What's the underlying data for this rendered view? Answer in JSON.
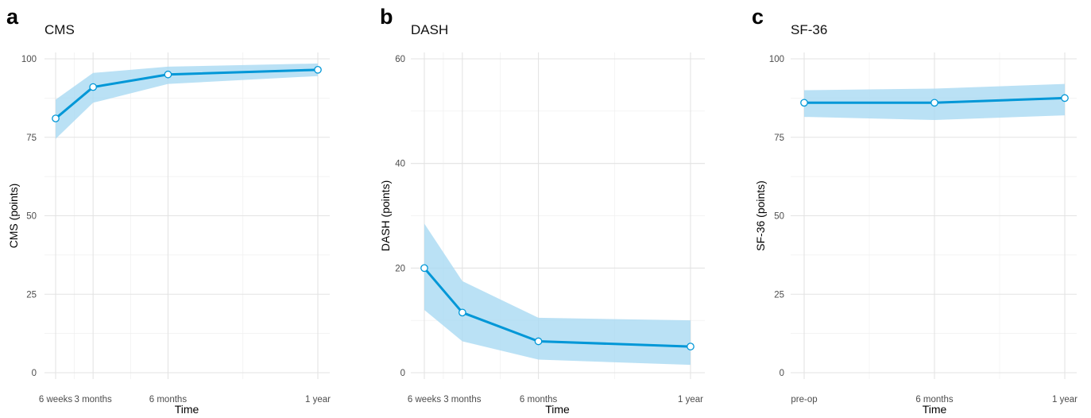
{
  "colors": {
    "line": "#0097d7",
    "band": "#a9daf2",
    "marker_fill": "#ffffff",
    "grid": "#e3e3e3"
  },
  "chart_data": [
    {
      "panel": "a",
      "type": "line",
      "title": "CMS",
      "xlabel": "Time",
      "ylabel": "CMS (points)",
      "x_months": [
        1.5,
        3,
        6,
        12
      ],
      "categories": [
        "6 weeks",
        "3 months",
        "6 months",
        "1 year"
      ],
      "values": [
        81,
        91,
        95,
        96.5
      ],
      "ci_lower": [
        74.5,
        86,
        92,
        94.5
      ],
      "ci_upper": [
        87,
        95.5,
        97.5,
        98.5
      ],
      "ylim": [
        0,
        100
      ],
      "yticks": [
        0,
        25,
        50,
        75,
        100
      ],
      "grid": true
    },
    {
      "panel": "b",
      "type": "line",
      "title": "DASH",
      "xlabel": "Time",
      "ylabel": "DASH (points)",
      "x_months": [
        1.5,
        3,
        6,
        12
      ],
      "categories": [
        "6 weeks",
        "3 months",
        "6 months",
        "1 year"
      ],
      "values": [
        20,
        11.5,
        6,
        5
      ],
      "ci_lower": [
        12,
        6,
        2.5,
        1.5
      ],
      "ci_upper": [
        28.5,
        17.5,
        10.5,
        10
      ],
      "ylim": [
        0,
        60
      ],
      "yticks": [
        0,
        20,
        40,
        60
      ],
      "grid": true
    },
    {
      "panel": "c",
      "type": "line",
      "title": "SF-36",
      "xlabel": "Time",
      "ylabel": "SF-36 (points)",
      "x_months": [
        0,
        6,
        12
      ],
      "categories": [
        "pre-op",
        "6 months",
        "1 year"
      ],
      "values": [
        86,
        86,
        87.5
      ],
      "ci_lower": [
        81.5,
        80.5,
        82
      ],
      "ci_upper": [
        90,
        90.5,
        92
      ],
      "ylim": [
        0,
        100
      ],
      "yticks": [
        0,
        25,
        50,
        75,
        100
      ],
      "grid": true
    }
  ]
}
